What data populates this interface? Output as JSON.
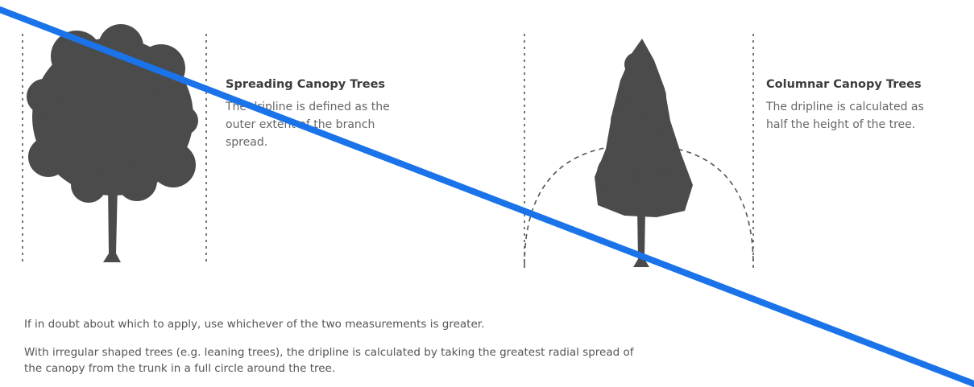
{
  "diagrams": [
    {
      "title": "Spreading Canopy Trees",
      "lines": [
        "The dripline is defined as the",
        "outer extent of the branch",
        "spread."
      ]
    },
    {
      "title": "Columnar Canopy Trees",
      "lines": [
        "The dripline is calculated as",
        "half the height of the tree."
      ]
    }
  ],
  "notes": [
    [
      "If in doubt about which to apply, use whichever of the two measurements is greater."
    ],
    [
      "With irregular shaped trees (e.g. leaning trees), the dripline is calculated by taking the greatest radial spread of",
      "the canopy from the trunk in a full circle around the tree."
    ]
  ]
}
